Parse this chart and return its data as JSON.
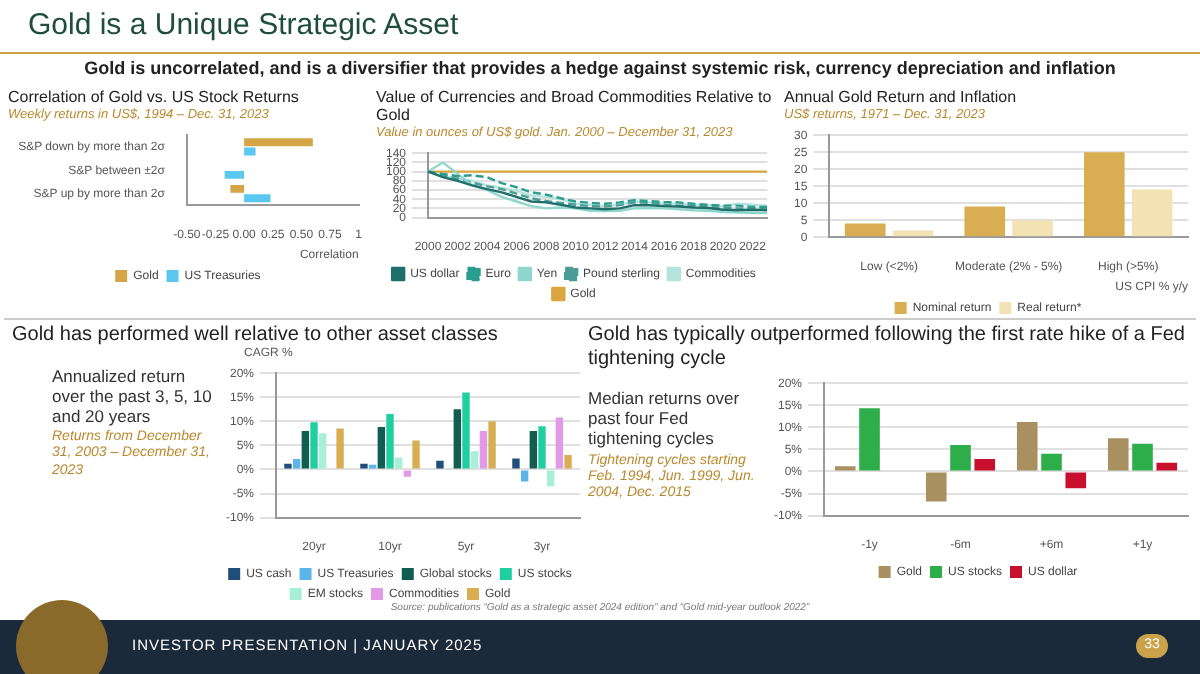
{
  "chart_data": [
    {
      "type": "bar",
      "orientation": "horizontal",
      "title": "Correlation of Gold vs. US Stock Returns",
      "subtitle": "Weekly returns in US$, 1994 – Dec. 31, 2023",
      "xlabel": "Correlation",
      "categories": [
        "S&P down by more than 2σ",
        "S&P between ±2σ",
        "S&P up by more than 2σ"
      ],
      "series": [
        {
          "name": "Gold",
          "color": "#d4a647",
          "values": [
            0.6,
            0,
            -0.12
          ]
        },
        {
          "name": "US Treasuries",
          "color": "#5bc8f0",
          "values": [
            0.1,
            -0.17,
            0.23
          ]
        }
      ],
      "xlim": [
        -0.5,
        1
      ],
      "xticks": [
        {
          "value": -0.5,
          "label": "-0.50"
        },
        {
          "value": -0.25,
          "label": "-0.25"
        },
        {
          "value": 0,
          "label": "0.00"
        },
        {
          "value": 0.25,
          "label": "0.25"
        },
        {
          "value": 0.5,
          "label": "0.50"
        },
        {
          "value": 0.75,
          "label": "0.75"
        },
        1
      ],
      "grid": false,
      "legend": "bottom",
      "annotations": [
        "Gold is a Unique Strategic Asset",
        "Gold is uncorrelated, and is a diversifier that provides a hedge against systemic risk, currency depreciation and inflation"
      ]
    },
    {
      "type": "line",
      "title": "Value of Currencies and Broad Commodities Relative to Gold",
      "subtitle": "Value in ounces of US$ gold. Jan. 2000 – December 31, 2023",
      "x": [
        2000,
        2001,
        2002,
        2003,
        2004,
        2005,
        2006,
        2007,
        2008,
        2009,
        2010,
        2011,
        2012,
        2013,
        2014,
        2015,
        2016,
        2017,
        2018,
        2019,
        2020,
        2021,
        2022,
        2023
      ],
      "series": [
        {
          "name": "US dollar",
          "color": "#1f6f6a",
          "values": [
            100,
            88,
            80,
            70,
            62,
            55,
            45,
            35,
            33,
            28,
            22,
            20,
            18,
            20,
            27,
            27,
            25,
            24,
            22,
            21,
            17,
            16,
            17,
            16
          ]
        },
        {
          "name": "Euro",
          "color": "#2a9d8f",
          "line_style": "dashed",
          "values": [
            100,
            95,
            90,
            92,
            88,
            75,
            66,
            55,
            50,
            42,
            35,
            32,
            30,
            33,
            38,
            36,
            34,
            33,
            30,
            28,
            26,
            26,
            23,
            23
          ]
        },
        {
          "name": "Yen",
          "color": "#8fd6cf",
          "values": [
            100,
            120,
            95,
            70,
            60,
            45,
            35,
            25,
            20,
            22,
            20,
            15,
            14,
            15,
            20,
            21,
            20,
            18,
            16,
            15,
            12,
            11,
            10,
            10
          ]
        },
        {
          "name": "Pound sterling",
          "color": "#4d9c96",
          "line_style": "dashed",
          "values": [
            100,
            92,
            84,
            76,
            68,
            62,
            52,
            42,
            36,
            32,
            28,
            25,
            24,
            27,
            33,
            32,
            28,
            26,
            25,
            24,
            21,
            20,
            19,
            18
          ]
        },
        {
          "name": "Commodities",
          "color": "#b4e3dd",
          "values": [
            100,
            90,
            85,
            80,
            70,
            65,
            58,
            48,
            45,
            40,
            30,
            28,
            25,
            28,
            35,
            33,
            30,
            30,
            28,
            27,
            25,
            30,
            28,
            26
          ]
        },
        {
          "name": "Gold",
          "color": "#d9a640",
          "values": [
            100,
            100,
            100,
            100,
            100,
            100,
            100,
            100,
            100,
            100,
            100,
            100,
            100,
            100,
            100,
            100,
            100,
            100,
            100,
            100,
            100,
            100,
            100,
            100
          ]
        }
      ],
      "xlim": [
        2000,
        2023
      ],
      "xticks": [
        2000,
        2002,
        2004,
        2006,
        2008,
        2010,
        2012,
        2014,
        2016,
        2018,
        2020,
        2022
      ],
      "ylim": [
        0,
        140
      ],
      "yticks": [
        0,
        20,
        40,
        60,
        80,
        100,
        120,
        140
      ],
      "grid": "y",
      "marker": "none",
      "legend": "bottom"
    },
    {
      "type": "bar",
      "title": "Annual Gold Return and Inflation",
      "subtitle": "US$ returns, 1971 – Dec. 31, 2023",
      "xlabel": "US CPI % y/y",
      "categories": [
        "Low (<2%)",
        "Moderate (2% - 5%)",
        "High (>5%)"
      ],
      "series": [
        {
          "name": "Nominal return",
          "color": "#d9ae52",
          "values": [
            4,
            9,
            25
          ]
        },
        {
          "name": "Real return*",
          "color": "#f2e2b4",
          "values": [
            2,
            5,
            14
          ]
        }
      ],
      "ylim": [
        0,
        30
      ],
      "yticks": [
        0,
        5,
        10,
        15,
        20,
        25,
        30
      ],
      "grid": "y",
      "legend": "bottom"
    },
    {
      "type": "bar",
      "title": "Gold has performed well relative to other asset classes",
      "subtitle": "Annualized return over the past 3, 5, 10 and 20 years",
      "ylabel": "CAGR %",
      "categories": [
        "20yr",
        "10yr",
        "5yr",
        "3yr"
      ],
      "series": [
        {
          "name": "US cash",
          "color": "#1f4e79",
          "values": [
            1.2,
            1.2,
            1.8,
            2.3
          ]
        },
        {
          "name": "US Treasuries",
          "color": "#5bb5e8",
          "values": [
            2.2,
            1,
            -0.2,
            -2.5
          ]
        },
        {
          "name": "Global stocks",
          "color": "#0f5e4f",
          "values": [
            8,
            8.8,
            12.5,
            8
          ]
        },
        {
          "name": "US stocks",
          "color": "#1fcf9f",
          "values": [
            9.8,
            11.5,
            16,
            9
          ]
        },
        {
          "name": "EM stocks",
          "color": "#a8efd8",
          "values": [
            7.5,
            2.5,
            3.8,
            -3.5
          ]
        },
        {
          "name": "Commodities",
          "color": "#e29ae8",
          "values": [
            null,
            -1.5,
            8,
            10.8
          ]
        },
        {
          "name": "Gold",
          "color": "#d9ae52",
          "values": [
            8.5,
            6,
            10,
            3
          ]
        }
      ],
      "ylim": [
        -10,
        20
      ],
      "yticks": [
        {
          "value": -10,
          "label": "-10%"
        },
        {
          "value": -5,
          "label": "-5%"
        },
        {
          "value": 0,
          "label": "0%"
        },
        {
          "value": 5,
          "label": "5%"
        },
        {
          "value": 10,
          "label": "10%"
        },
        {
          "value": 15,
          "label": "15%"
        },
        {
          "value": 20,
          "label": "20%"
        }
      ],
      "grid": "y",
      "legend": "bottom",
      "annotations": [
        "Returns from December 31, 2003 – December 31, 2023"
      ]
    },
    {
      "type": "bar",
      "title": "Gold has typically outperformed following the first rate hike of a Fed tightening cycle",
      "subtitle": "Median returns over past four Fed tightening cycles",
      "categories": [
        "-1y",
        "-6m",
        "+6m",
        "+1y"
      ],
      "series": [
        {
          "name": "Gold",
          "color": "#a89060",
          "values": [
            1.2,
            -6.8,
            11.2,
            7.5
          ]
        },
        {
          "name": "US stocks",
          "color": "#2eae4a",
          "values": [
            14.3,
            6,
            4,
            6.3
          ]
        },
        {
          "name": "US dollar",
          "color": "#c8102e",
          "values": [
            null,
            2.8,
            -3.8,
            2
          ]
        }
      ],
      "ylim": [
        -10,
        20
      ],
      "yticks": [
        {
          "value": -10,
          "label": "-10%"
        },
        {
          "value": -5,
          "label": "-5%"
        },
        {
          "value": 0,
          "label": "0%"
        },
        {
          "value": 5,
          "label": "5%"
        },
        {
          "value": 10,
          "label": "10%"
        },
        {
          "value": 15,
          "label": "15%"
        },
        {
          "value": 20,
          "label": "20%"
        }
      ],
      "grid": "y",
      "legend": "bottom",
      "annotations": [
        "Tightening cycles starting Feb. 1994, Jun. 1999, Jun. 2004, Dec. 2015",
        "Source: publications “Gold as a strategic asset 2024 edition” and “Gold mid-year outlook 2022”",
        "INVESTOR PRESENTATION  |  JANUARY 2025",
        "33"
      ]
    }
  ]
}
